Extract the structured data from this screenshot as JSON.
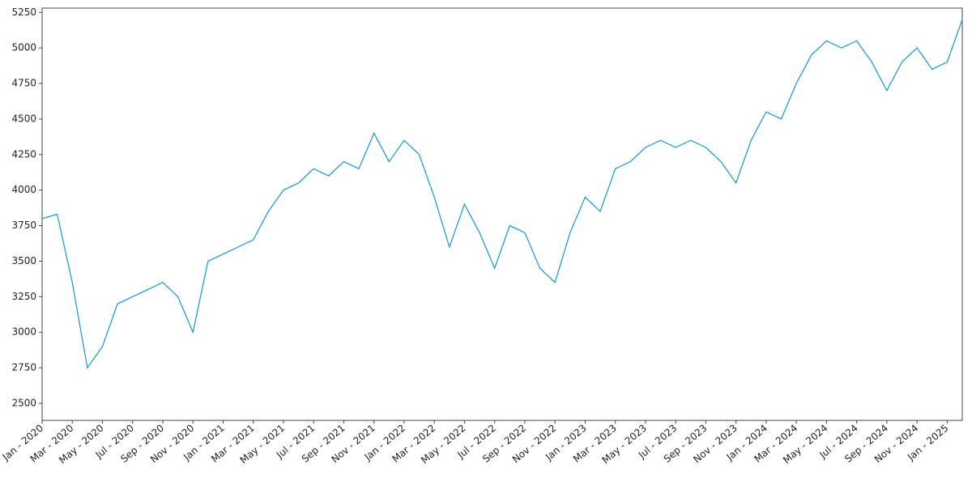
{
  "chart_data": {
    "type": "line",
    "x": [
      "2020-01",
      "2020-02",
      "2020-03",
      "2020-04",
      "2020-05",
      "2020-06",
      "2020-07",
      "2020-08",
      "2020-09",
      "2020-10",
      "2020-11",
      "2020-12",
      "2021-01",
      "2021-02",
      "2021-03",
      "2021-04",
      "2021-05",
      "2021-06",
      "2021-07",
      "2021-08",
      "2021-09",
      "2021-10",
      "2021-11",
      "2021-12",
      "2022-01",
      "2022-02",
      "2022-03",
      "2022-04",
      "2022-05",
      "2022-06",
      "2022-07",
      "2022-08",
      "2022-09",
      "2022-10",
      "2022-11",
      "2022-12",
      "2023-01",
      "2023-02",
      "2023-03",
      "2023-04",
      "2023-05",
      "2023-06",
      "2023-07",
      "2023-08",
      "2023-09",
      "2023-10",
      "2023-11",
      "2023-12",
      "2024-01",
      "2024-02",
      "2024-03",
      "2024-04",
      "2024-05",
      "2024-06",
      "2024-07",
      "2024-08",
      "2024-09",
      "2024-10",
      "2024-11",
      "2024-12",
      "2025-01",
      "2025-02"
    ],
    "series": [
      {
        "color": "#1196d8",
        "values": [
          3800,
          3830,
          3350,
          2750,
          2900,
          3200,
          3250,
          3300,
          3350,
          3250,
          3000,
          3500,
          3550,
          3600,
          3650,
          3850,
          4000,
          4050,
          4150,
          4100,
          4200,
          4150,
          4400,
          4200,
          4350,
          4250,
          3950,
          3600,
          3900,
          3700,
          3450,
          3750,
          3700,
          3450,
          3350,
          3700,
          3950,
          3850,
          4150,
          4200,
          4300,
          4350,
          4300,
          4350,
          4300,
          4200,
          4050,
          4350,
          4550,
          4500,
          4750,
          4950,
          5050,
          5000,
          5050,
          4900,
          4700,
          4900,
          5000,
          4850,
          4900,
          5200
        ]
      }
    ],
    "xlim": [
      "2020-01",
      "2025-02"
    ],
    "ylim": [
      2380,
      5280
    ],
    "yticks": [
      2500,
      2750,
      3000,
      3250,
      3500,
      3750,
      4000,
      4250,
      4500,
      4750,
      5000,
      5250
    ],
    "xticks": [
      {
        "value": "2020-01",
        "label": "Jan - 2020"
      },
      {
        "value": "2020-03",
        "label": "Mar - 2020"
      },
      {
        "value": "2020-05",
        "label": "May - 2020"
      },
      {
        "value": "2020-07",
        "label": "Jul - 2020"
      },
      {
        "value": "2020-09",
        "label": "Sep - 2020"
      },
      {
        "value": "2020-11",
        "label": "Nov - 2020"
      },
      {
        "value": "2021-01",
        "label": "Jan - 2021"
      },
      {
        "value": "2021-03",
        "label": "Mar - 2021"
      },
      {
        "value": "2021-05",
        "label": "May - 2021"
      },
      {
        "value": "2021-07",
        "label": "Jul - 2021"
      },
      {
        "value": "2021-09",
        "label": "Sep - 2021"
      },
      {
        "value": "2021-11",
        "label": "Nov - 2021"
      },
      {
        "value": "2022-01",
        "label": "Jan - 2022"
      },
      {
        "value": "2022-03",
        "label": "Mar - 2022"
      },
      {
        "value": "2022-05",
        "label": "May - 2022"
      },
      {
        "value": "2022-07",
        "label": "Jul - 2022"
      },
      {
        "value": "2022-09",
        "label": "Sep - 2022"
      },
      {
        "value": "2022-11",
        "label": "Nov - 2022"
      },
      {
        "value": "2023-01",
        "label": "Jan - 2023"
      },
      {
        "value": "2023-03",
        "label": "Mar - 2023"
      },
      {
        "value": "2023-05",
        "label": "May - 2023"
      },
      {
        "value": "2023-07",
        "label": "Jul - 2023"
      },
      {
        "value": "2023-09",
        "label": "Sep - 2023"
      },
      {
        "value": "2023-11",
        "label": "Nov - 2023"
      },
      {
        "value": "2024-01",
        "label": "Jan - 2024"
      },
      {
        "value": "2024-03",
        "label": "Mar - 2024"
      },
      {
        "value": "2024-05",
        "label": "May - 2024"
      },
      {
        "value": "2024-07",
        "label": "Jul - 2024"
      },
      {
        "value": "2024-09",
        "label": "Sep - 2024"
      },
      {
        "value": "2024-11",
        "label": "Nov - 2024"
      },
      {
        "value": "2025-01",
        "label": "Jan - 2025"
      }
    ],
    "grid": false
  }
}
